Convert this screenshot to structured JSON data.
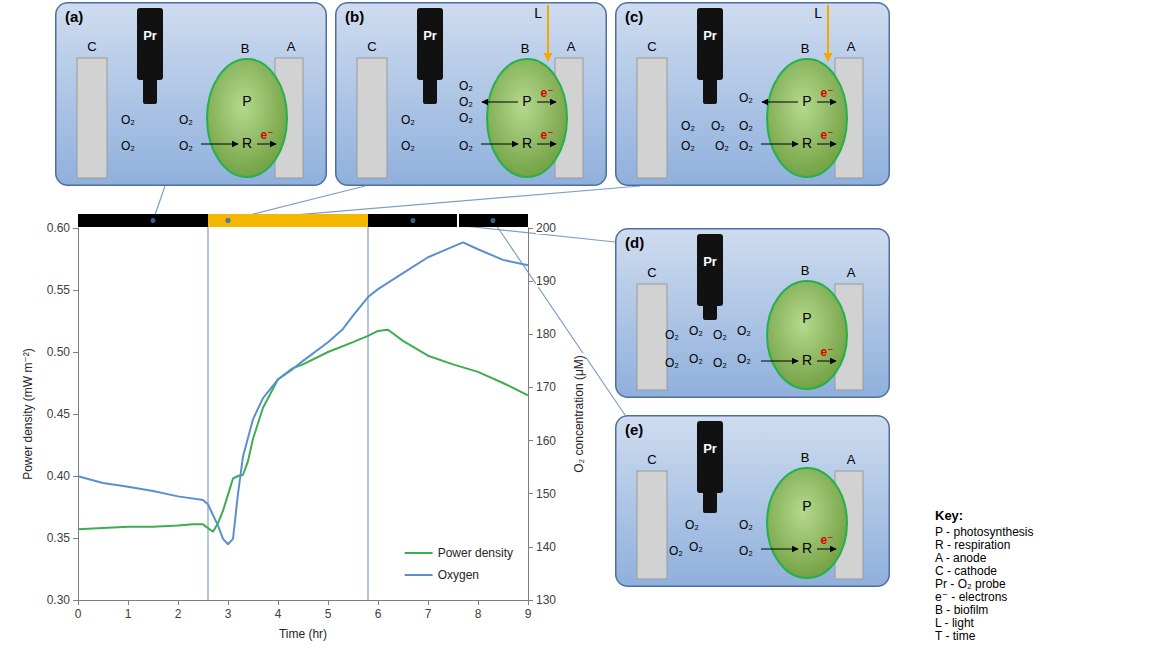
{
  "chart_data": {
    "type": "line",
    "xlabel": "Time (hr)",
    "ylabel": "Power density (mW m⁻²)",
    "y2label": "O₂ concentration (μM)",
    "xlim": [
      0,
      9
    ],
    "xticks": [
      0,
      1,
      2,
      3,
      4,
      5,
      6,
      7,
      8,
      9
    ],
    "ylim": [
      0.3,
      0.6
    ],
    "yticks": [
      {
        "value": 0.3,
        "label": "0.30"
      },
      0.35,
      {
        "value": 0.4,
        "label": "0.40"
      },
      0.45,
      {
        "value": 0.5,
        "label": "0.50"
      },
      0.55,
      {
        "value": 0.6,
        "label": "0.60"
      }
    ],
    "y2lim": [
      130,
      200
    ],
    "y2ticks": [
      130,
      140,
      150,
      160,
      170,
      180,
      190,
      200
    ],
    "grid": false,
    "legend": "bottom-right",
    "series": [
      {
        "name": "Power density",
        "color": "#3dae4f",
        "x": [
          0,
          0.5,
          1,
          1.5,
          2,
          2.3,
          2.5,
          2.6,
          2.7,
          2.8,
          2.9,
          3.0,
          3.1,
          3.2,
          3.3,
          3.4,
          3.5,
          3.7,
          4.0,
          4.3,
          4.5,
          5.0,
          5.5,
          5.8,
          6.0,
          6.2,
          6.5,
          7.0,
          7.5,
          8.0,
          8.5,
          9.0
        ],
        "values": [
          0.357,
          0.358,
          0.359,
          0.359,
          0.36,
          0.361,
          0.361,
          0.358,
          0.355,
          0.362,
          0.372,
          0.385,
          0.398,
          0.4,
          0.401,
          0.412,
          0.43,
          0.455,
          0.478,
          0.487,
          0.49,
          0.5,
          0.508,
          0.513,
          0.517,
          0.518,
          0.509,
          0.497,
          0.49,
          0.484,
          0.475,
          0.465
        ]
      },
      {
        "name": "Oxygen",
        "color": "#5b8fd1",
        "axis": "y2",
        "x": [
          0,
          0.5,
          1,
          1.5,
          2,
          2.5,
          2.6,
          2.7,
          2.8,
          2.9,
          3.0,
          3.1,
          3.2,
          3.3,
          3.5,
          3.7,
          4.0,
          4.3,
          4.5,
          5.0,
          5.3,
          5.5,
          5.8,
          6.0,
          6.5,
          7.0,
          7.5,
          7.7,
          8.0,
          8.5,
          9.0
        ],
        "values": [
          153.3,
          152,
          151.3,
          150.5,
          149.5,
          148.8,
          148,
          146,
          144,
          141.5,
          140.5,
          141.5,
          150,
          157,
          164,
          168,
          171.5,
          173.5,
          175,
          178.5,
          181,
          183.5,
          187,
          188.5,
          191.5,
          194.5,
          196.5,
          197.3,
          196,
          194,
          193
        ]
      }
    ],
    "light_bar": {
      "segments": [
        {
          "start": 0,
          "end": 2.6,
          "color": "#000000"
        },
        {
          "start": 2.6,
          "end": 5.8,
          "color": "#f5b800"
        },
        {
          "start": 5.8,
          "end": 9,
          "color": "#000000"
        }
      ],
      "dividers": [
        7.6
      ]
    }
  },
  "diagram": {
    "panels": [
      {
        "label": "(a)",
        "cathode": "C",
        "probe": "Pr",
        "biofilm": "B",
        "anode": "A",
        "photosynthesis": "P",
        "respiration": "R",
        "oxygen": [
          "O₂",
          "O₂",
          "O₂",
          "O₂"
        ],
        "electrons": [
          "e⁻"
        ],
        "time": 1.5
      },
      {
        "label": "(b)",
        "cathode": "C",
        "probe": "Pr",
        "biofilm": "B",
        "anode": "A",
        "photosynthesis": "P",
        "respiration": "R",
        "light": "L",
        "oxygen": [
          "O₂",
          "O₂",
          "O₂",
          "O₂",
          "O₂",
          "O₂"
        ],
        "electrons": [
          "e⁻",
          "e⁻"
        ],
        "time": 3.0
      },
      {
        "label": "(c)",
        "cathode": "C",
        "probe": "Pr",
        "biofilm": "B",
        "anode": "A",
        "photosynthesis": "P",
        "respiration": "R",
        "light": "L",
        "oxygen": [
          "O₂",
          "O₂",
          "O₂",
          "O₂",
          "O₂",
          "O₂",
          "O₂"
        ],
        "electrons": [
          "e⁻",
          "e⁻"
        ],
        "time": 3.0
      },
      {
        "label": "(d)",
        "cathode": "C",
        "probe": "Pr",
        "biofilm": "B",
        "anode": "A",
        "photosynthesis": "P",
        "respiration": "R",
        "oxygen": [
          "O₂",
          "O₂",
          "O₂",
          "O₂",
          "O₂",
          "O₂",
          "O₂",
          "O₂"
        ],
        "electrons": [
          "e⁻"
        ],
        "time": 6.7
      },
      {
        "label": "(e)",
        "cathode": "C",
        "probe": "Pr",
        "biofilm": "B",
        "anode": "A",
        "photosynthesis": "P",
        "respiration": "R",
        "oxygen": [
          "O₂",
          "O₂",
          "O₂",
          "O₂",
          "O₂"
        ],
        "electrons": [
          "e⁻"
        ],
        "time": 8.3
      }
    ],
    "key": {
      "title": "Key:",
      "entries": [
        "P - photosynthesis",
        "R - respiration",
        "A - anode",
        "C - cathode",
        "Pr - O₂ probe",
        "e⁻ - electrons",
        "B - biofilm",
        "L - light",
        "T - time"
      ]
    }
  }
}
